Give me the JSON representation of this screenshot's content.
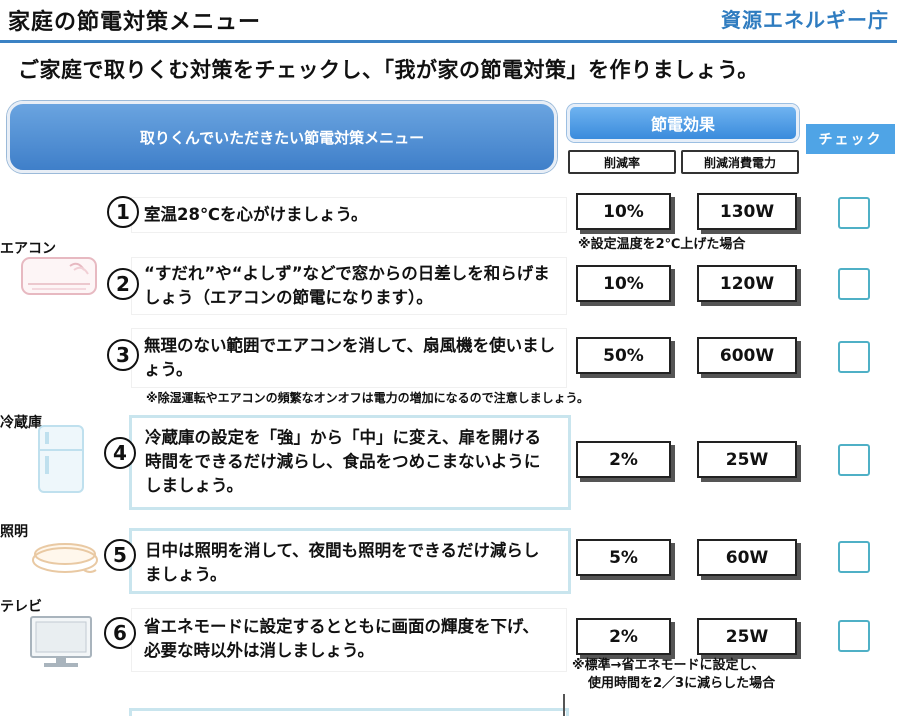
{
  "header": {
    "title": "家庭の節電対策メニュー",
    "agency": "資源エネルギー庁"
  },
  "subtitle": "ご家庭で取りくむ対策をチェックし、「我が家の節電対策」を作りましょう。",
  "table_header": {
    "menu": "取りくんでいただきたい節電対策メニュー",
    "effect": "節電効果",
    "reduction_rate": "削減率",
    "reduced_power": "削減消費電力",
    "check": "チェック"
  },
  "categories": {
    "aircon": "エアコン",
    "fridge": "冷蔵庫",
    "lighting": "照明",
    "tv": "テレビ"
  },
  "items": [
    {
      "num": "1",
      "text": "室温28℃を心がけましょう。",
      "rate": "10%",
      "watts": "130W"
    },
    {
      "num": "2",
      "text": "“すだれ”や“よしず”などで窓からの日差しを和らげましょう（エアコンの節電になります）。",
      "rate": "10%",
      "watts": "120W"
    },
    {
      "num": "3",
      "text": "無理のない範囲でエアコンを消して、扇風機を使いましょう。",
      "rate": "50%",
      "watts": "600W"
    },
    {
      "num": "4",
      "text": "冷蔵庫の設定を「強」から「中」に変え、扉を開ける時間をできるだけ減らし、食品をつめこまないようにしましょう。",
      "rate": "2%",
      "watts": "25W"
    },
    {
      "num": "5",
      "text": "日中は照明を消して、夜間も照明をできるだけ減らしましょう。",
      "rate": "5%",
      "watts": "60W"
    },
    {
      "num": "6",
      "text": "省エネモードに設定するとともに画面の輝度を下げ、必要な時以外は消しましょう。",
      "rate": "2%",
      "watts": "25W"
    }
  ],
  "notes": {
    "item1": "※設定温度を2℃上げた場合",
    "item3": "※除湿運転やエアコンの頻繁なオンオフは電力の増加になるので注意しましょう。",
    "item6_line1": "※標準→省エネモードに設定し、",
    "item6_line2": "使用時間を2／3に減らした場合"
  }
}
